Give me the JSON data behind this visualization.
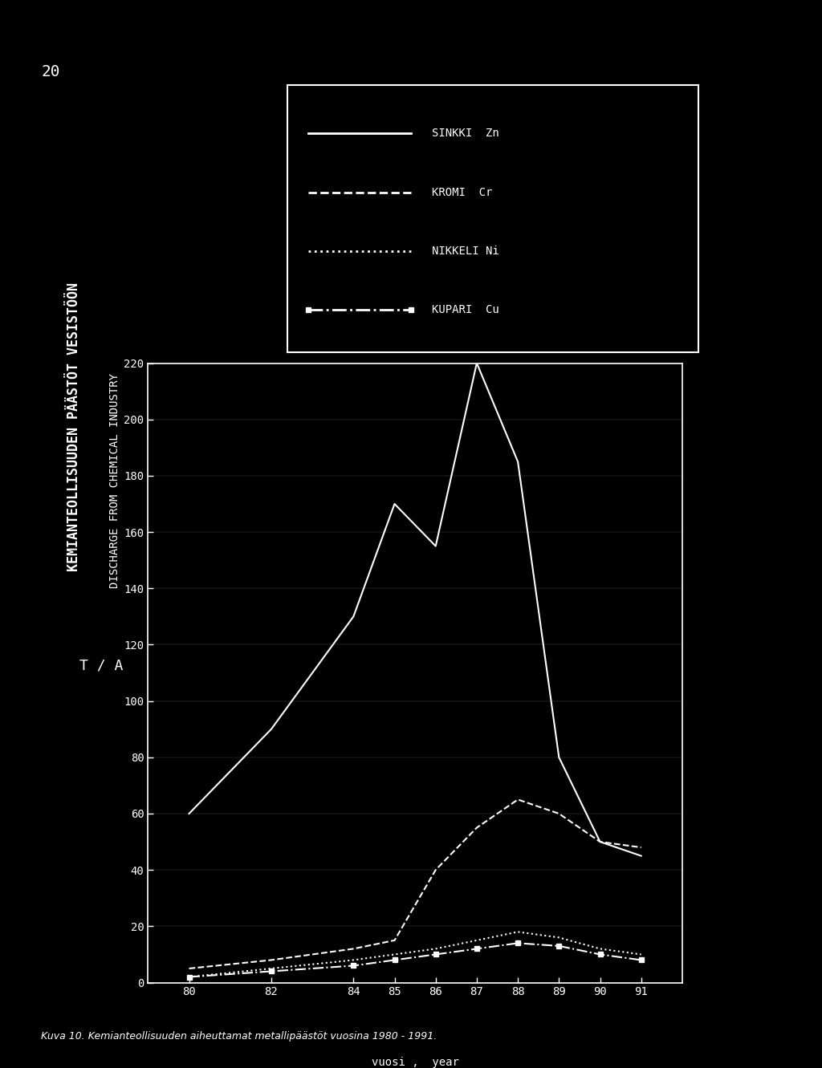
{
  "title1": "KEMIANTEOLLISUUDEN PÄÄSTÖT VESISTÖÖN",
  "title2": "DISCHARGE FROM CHEMICAL INDUSTRY",
  "ylabel": "T / A",
  "xlabel_fi": "vuosi ,",
  "xlabel_en": "year",
  "page_number": "20",
  "years": [
    80,
    82,
    84,
    85,
    86,
    87,
    88,
    89,
    90,
    91
  ],
  "sinkki_zn": [
    60,
    90,
    130,
    170,
    155,
    220,
    185,
    80,
    50,
    45
  ],
  "kromi_cr": [
    5,
    8,
    12,
    15,
    40,
    55,
    65,
    60,
    50,
    48
  ],
  "nikkeli_ni": [
    2,
    5,
    8,
    10,
    12,
    15,
    18,
    16,
    12,
    10
  ],
  "kupari_cu": [
    2,
    4,
    6,
    8,
    10,
    12,
    14,
    13,
    10,
    8
  ],
  "ylim": [
    0,
    220
  ],
  "yticks": [
    0,
    20,
    40,
    60,
    80,
    100,
    120,
    140,
    160,
    180,
    200,
    220
  ],
  "bg_color": "#000000",
  "fg_color": "#ffffff",
  "legend_labels": [
    "SINKKI  Zn",
    "KROMI  Cr",
    "NIKKELI Ni",
    "KUPARI  Cu"
  ],
  "caption": "Kuva 10. Kemianteollisuuden aiheuttamat metallipäästöt vuosina 1980 - 1991."
}
